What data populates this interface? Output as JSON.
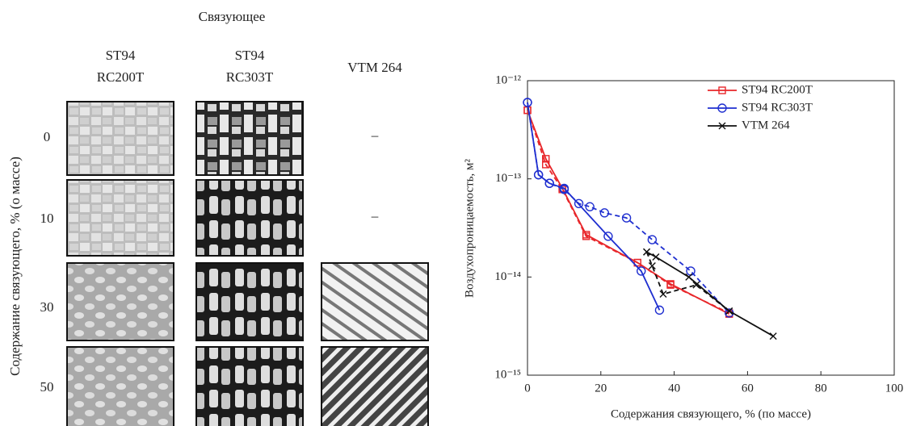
{
  "panel": {
    "title": "Связующее",
    "row_axis_label": "Содержание связующего, % (о массе)",
    "columns": [
      [
        "ST94",
        "RC200T"
      ],
      [
        "ST94",
        "RC303T"
      ],
      [
        "VTM 264"
      ]
    ],
    "rows": [
      "0",
      "10",
      "30",
      "50"
    ],
    "missing_marks": [
      "–",
      "–"
    ]
  },
  "chart_data": {
    "type": "line",
    "xlabel": "Содержания связующего, % (по массе)",
    "ylabel": "Воздухопроницаемость, м²",
    "xlim": [
      0,
      100
    ],
    "xticks": [
      0,
      20,
      40,
      60,
      80,
      100
    ],
    "ylim": [
      1e-15,
      1e-12
    ],
    "log_y": true,
    "yticks": [
      {
        "value": 1e-15,
        "label": "10⁻¹⁵"
      },
      {
        "value": 1e-14,
        "label": "10⁻¹⁴"
      },
      {
        "value": 1e-13,
        "label": "10⁻¹³"
      },
      {
        "value": 1e-12,
        "label": "10⁻¹²"
      }
    ],
    "legend": "upper right",
    "series": [
      {
        "name": "ST94 RC200T",
        "color": "#e8262a",
        "marker": "square",
        "runs": [
          {
            "style": "solid",
            "x": [
              0,
              5,
              9.5,
              16,
              30,
              39,
              55
            ],
            "values": [
              5e-13,
              1.6e-13,
              8e-14,
              2.7e-14,
              1.4e-14,
              8.5e-15,
              4.2e-15
            ]
          },
          {
            "style": "dashed",
            "x": [
              0,
              5,
              9.5,
              16,
              30,
              39,
              55
            ],
            "values": [
              5e-13,
              1.4e-13,
              7.8e-14,
              2.6e-14,
              1.4e-14,
              8.3e-15,
              4.3e-15
            ]
          }
        ]
      },
      {
        "name": "ST94 RC303T",
        "color": "#1f2fd0",
        "marker": "circle",
        "runs": [
          {
            "style": "solid",
            "x": [
              0,
              3,
              6,
              10,
              22,
              31,
              36
            ],
            "values": [
              6e-13,
              1.1e-13,
              9e-14,
              8e-14,
              2.6e-14,
              1.15e-14,
              4.6e-15
            ]
          },
          {
            "style": "dashed",
            "x": [
              0,
              3,
              6,
              10,
              14,
              17,
              21,
              27,
              34,
              44.5,
              55
            ],
            "values": [
              6e-13,
              1.1e-13,
              9e-14,
              7.8e-14,
              5.6e-14,
              5.2e-14,
              4.5e-14,
              4e-14,
              2.4e-14,
              1.15e-14,
              4.3e-15
            ]
          }
        ]
      },
      {
        "name": "VTM 264",
        "color": "#111111",
        "marker": "x",
        "runs": [
          {
            "style": "solid",
            "x": [
              32.5,
              35,
              44,
              55,
              67
            ],
            "values": [
              1.8e-14,
              1.6e-14,
              1e-14,
              4.5e-15,
              2.5e-15
            ]
          },
          {
            "style": "dashed",
            "x": [
              32.5,
              34,
              37,
              46,
              55
            ],
            "values": [
              1.8e-14,
              1.3e-14,
              6.7e-15,
              8.3e-15,
              4.5e-15
            ]
          }
        ]
      }
    ]
  }
}
